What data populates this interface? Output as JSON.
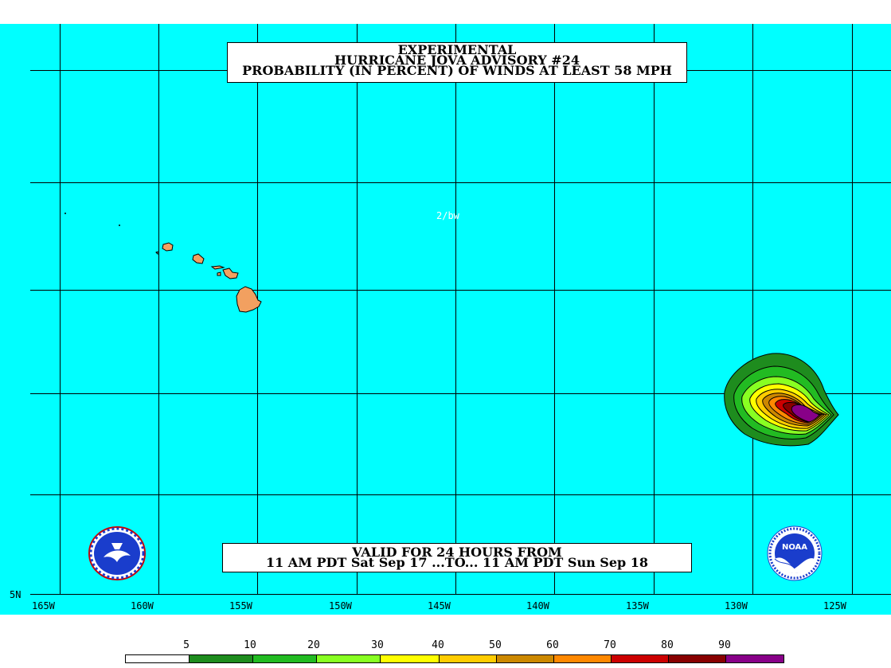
{
  "header": {
    "line1": "EXPERIMENTAL",
    "line2": "HURRICANE JOVA ADVISORY #24",
    "line3": "PROBABILITY (IN PERCENT) OF WINDS AT LEAST 58 MPH"
  },
  "valid": {
    "line1": "VALID FOR 24 HOURS FROM",
    "line2": "11 AM PDT Sat Sep 17 ...TO... 11 AM PDT Sun Sep 18"
  },
  "credit": "2/bw",
  "lon_labels": [
    "165W",
    "160W",
    "155W",
    "150W",
    "145W",
    "140W",
    "135W",
    "130W",
    "125W"
  ],
  "lat_labels": [
    "5N"
  ],
  "legend": {
    "labels": [
      "5",
      "10",
      "20",
      "30",
      "40",
      "50",
      "60",
      "70",
      "80",
      "90"
    ],
    "colors": [
      "#ffffff",
      "#1e8c1e",
      "#22bb22",
      "#88ff22",
      "#ffff00",
      "#ffcc00",
      "#cc8800",
      "#ff8800",
      "#cc0000",
      "#880000",
      "#880088"
    ]
  },
  "colors": {
    "ocean": "#00ffff",
    "land": "#f2a060"
  },
  "icons": {
    "left_logo": "nws-logo-icon",
    "right_logo": "noaa-logo-icon"
  },
  "logo_text": {
    "noaa": "NOAA"
  }
}
